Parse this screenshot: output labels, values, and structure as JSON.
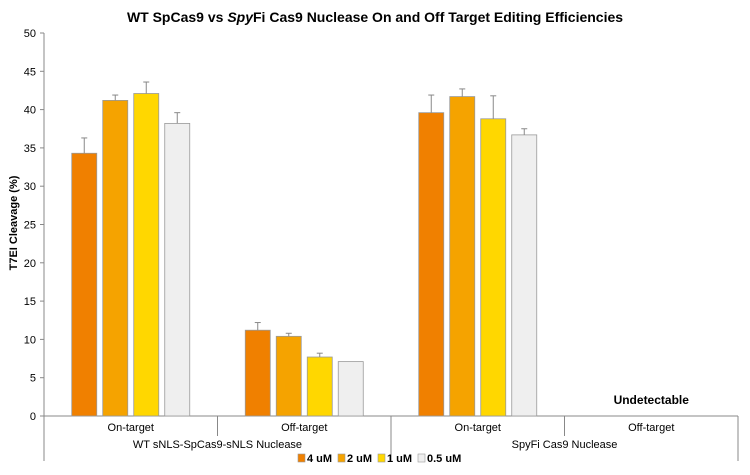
{
  "chart_data": {
    "type": "bar",
    "title": {
      "prefix": "WT SpCas9 vs ",
      "italic": "Spy",
      "suffix": "Fi Cas9 Nuclease On and Off Target Editing Efficiencies"
    },
    "ylabel": "T7EI Cleavage (%)",
    "xlabel": "",
    "ylim": [
      0,
      50
    ],
    "yticks": [
      "0",
      "5",
      "10",
      "15",
      "20",
      "25",
      "30",
      "35",
      "40",
      "45",
      "50"
    ],
    "grid": false,
    "legend_position": "bottom",
    "groups": [
      {
        "label": "WT sNLS-SpCas9-sNLS Nuclease",
        "categories": [
          "On-target",
          "Off-target"
        ]
      },
      {
        "label": "SpyFi Cas9 Nuclease",
        "categories": [
          "On-target",
          "Off-target"
        ]
      }
    ],
    "categories": [
      "On-target",
      "Off-target",
      "On-target",
      "Off-target"
    ],
    "series": [
      {
        "name": "4 uM",
        "color": "#F08000",
        "values": [
          34.3,
          11.2,
          39.6,
          null
        ],
        "errors": [
          2.0,
          1.0,
          2.3,
          null
        ]
      },
      {
        "name": "2 uM",
        "color": "#F5A300",
        "values": [
          41.2,
          10.4,
          41.7,
          null
        ],
        "errors": [
          0.7,
          0.4,
          1.0,
          null
        ]
      },
      {
        "name": "1 uM",
        "color": "#FFD700",
        "values": [
          42.1,
          7.7,
          38.8,
          null
        ],
        "errors": [
          1.5,
          0.5,
          3.0,
          null
        ]
      },
      {
        "name": "0.5 uM",
        "color": "#EFEFEF",
        "values": [
          38.2,
          7.1,
          36.7,
          null
        ],
        "errors": [
          1.4,
          null,
          0.8,
          null
        ]
      }
    ],
    "annotations": [
      {
        "text": "Undetectable",
        "category_index": 3
      }
    ]
  }
}
